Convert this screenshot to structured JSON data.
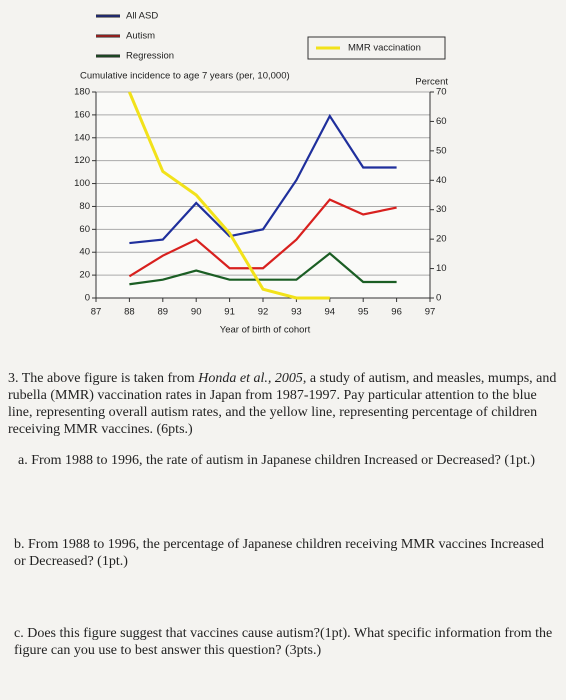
{
  "chart_data": {
    "type": "line",
    "y_label": "Cumulative incidence to age 7 years (per, 10,000)",
    "y2_label": "Percent",
    "x_label": "Year of birth of cohort",
    "x": [
      87,
      88,
      89,
      90,
      91,
      92,
      93,
      94,
      95,
      96,
      97
    ],
    "xlim": [
      87,
      97
    ],
    "xticks": [
      87,
      88,
      89,
      90,
      91,
      92,
      93,
      94,
      95,
      96,
      97
    ],
    "ylim": [
      0,
      180
    ],
    "yticks": [
      0,
      20,
      40,
      60,
      80,
      100,
      120,
      140,
      160,
      180
    ],
    "y2lim": [
      0,
      70
    ],
    "y2ticks": [
      0,
      10,
      20,
      30,
      40,
      50,
      60,
      70
    ],
    "grid": true,
    "series": [
      {
        "name": "All ASD",
        "color": "#1f2f9c",
        "values": [
          null,
          48,
          51,
          83,
          54,
          60,
          103,
          159,
          114,
          114,
          null
        ]
      },
      {
        "name": "Autism",
        "color": "#d8201e",
        "values": [
          null,
          19,
          37,
          51,
          26,
          26,
          51,
          86,
          73,
          79,
          null
        ]
      },
      {
        "name": "Regression",
        "color": "#1b5e24",
        "values": [
          null,
          12,
          16,
          24,
          16,
          16,
          16,
          39,
          14,
          14,
          null
        ]
      },
      {
        "name": "MMR vaccination",
        "color": "#f2e21a",
        "axis": "y2",
        "values": [
          null,
          70,
          43,
          35,
          22,
          3,
          0,
          0,
          null,
          null,
          null
        ]
      }
    ]
  },
  "question": {
    "intro": [
      "3. The above figure is taken from ",
      "Honda et al., 2005",
      ", a study of autism, and measles, mumps, and rubella (MMR) vaccination rates in Japan from 1987-1997. Pay particular attention to the blue line, representing overall autism rates, and the yellow line, representing percentage of children receiving MMR vaccines. (6pts.)"
    ],
    "a": "a. From 1988 to 1996, the rate of autism in Japanese children Increased or Decreased? (1pt.)",
    "b": "b. From 1988 to 1996, the percentage of Japanese children receiving MMR vaccines Increased or Decreased? (1pt.)",
    "c": "c. Does this figure suggest that vaccines cause autism?(1pt). What specific information from the figure can you use to best answer this question? (3pts.)"
  }
}
